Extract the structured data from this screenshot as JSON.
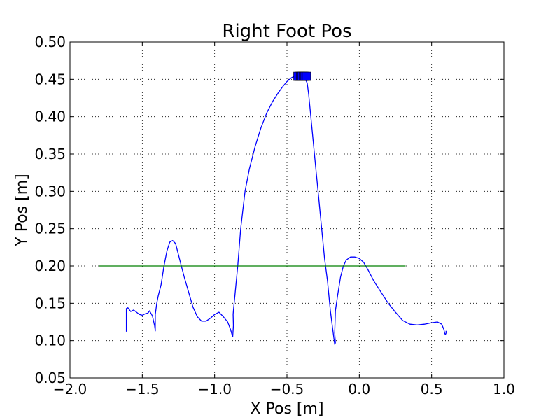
{
  "chart_data": {
    "type": "line",
    "title": "Right Foot Pos",
    "xlabel": "X Pos [m]",
    "ylabel": "Y Pos [m]",
    "xlim": [
      -2.0,
      1.0
    ],
    "ylim": [
      0.05,
      0.5
    ],
    "grid": true,
    "x_ticks": [
      {
        "value": -2.0,
        "label": "−2.0"
      },
      {
        "value": -1.5,
        "label": "−1.5"
      },
      {
        "value": -1.0,
        "label": "−1.0"
      },
      {
        "value": -0.5,
        "label": "−0.5"
      },
      {
        "value": 0.0,
        "label": "0.0"
      },
      {
        "value": 0.5,
        "label": "0.5"
      },
      {
        "value": 1.0,
        "label": "1.0"
      }
    ],
    "y_ticks": [
      {
        "value": 0.05,
        "label": "0.05"
      },
      {
        "value": 0.1,
        "label": "0.10"
      },
      {
        "value": 0.15,
        "label": "0.15"
      },
      {
        "value": 0.2,
        "label": "0.20"
      },
      {
        "value": 0.25,
        "label": "0.25"
      },
      {
        "value": 0.3,
        "label": "0.30"
      },
      {
        "value": 0.35,
        "label": "0.35"
      },
      {
        "value": 0.4,
        "label": "0.40"
      },
      {
        "value": 0.45,
        "label": "0.45"
      },
      {
        "value": 0.5,
        "label": "0.50"
      }
    ],
    "series": [
      {
        "color": "#0000ff",
        "x": [
          -1.61,
          -1.61,
          -1.6,
          -1.58,
          -1.56,
          -1.54,
          -1.52,
          -1.5,
          -1.48,
          -1.46,
          -1.45,
          -1.43,
          -1.415,
          -1.41,
          -1.41,
          -1.41,
          -1.4,
          -1.39,
          -1.37,
          -1.35,
          -1.33,
          -1.31,
          -1.29,
          -1.27,
          -1.25,
          -1.23,
          -1.21,
          -1.18,
          -1.15,
          -1.12,
          -1.09,
          -1.06,
          -1.03,
          -1.0,
          -0.97,
          -0.94,
          -0.91,
          -0.89,
          -0.88,
          -0.875,
          -0.87,
          -0.872,
          -0.87,
          -0.86,
          -0.84,
          -0.82,
          -0.79,
          -0.76,
          -0.72,
          -0.68,
          -0.64,
          -0.6,
          -0.56,
          -0.53,
          -0.5,
          -0.47,
          -0.44,
          -0.42,
          -0.4,
          -0.38,
          -0.36,
          -0.35,
          -0.34,
          -0.32,
          -0.3,
          -0.28,
          -0.26,
          -0.24,
          -0.22,
          -0.2,
          -0.18,
          -0.17,
          -0.165,
          -0.17,
          -0.165,
          -0.15,
          -0.13,
          -0.11,
          -0.09,
          -0.06,
          -0.03,
          0.0,
          0.03,
          0.06,
          0.1,
          0.15,
          0.2,
          0.25,
          0.3,
          0.35,
          0.4,
          0.45,
          0.5,
          0.54,
          0.57,
          0.585,
          0.59,
          0.595,
          0.6,
          0.6
        ],
        "y": [
          0.112,
          0.143,
          0.144,
          0.139,
          0.141,
          0.138,
          0.135,
          0.134,
          0.136,
          0.137,
          0.14,
          0.133,
          0.12,
          0.113,
          0.118,
          0.135,
          0.15,
          0.16,
          0.175,
          0.2,
          0.22,
          0.232,
          0.234,
          0.23,
          0.215,
          0.2,
          0.185,
          0.165,
          0.145,
          0.132,
          0.126,
          0.126,
          0.13,
          0.135,
          0.138,
          0.132,
          0.125,
          0.115,
          0.108,
          0.105,
          0.12,
          0.135,
          0.14,
          0.16,
          0.2,
          0.25,
          0.3,
          0.33,
          0.36,
          0.385,
          0.405,
          0.42,
          0.432,
          0.44,
          0.447,
          0.452,
          0.455,
          0.455,
          0.455,
          0.453,
          0.445,
          0.43,
          0.41,
          0.37,
          0.33,
          0.29,
          0.25,
          0.21,
          0.18,
          0.14,
          0.11,
          0.095,
          0.097,
          0.11,
          0.14,
          0.16,
          0.185,
          0.2,
          0.208,
          0.212,
          0.212,
          0.21,
          0.205,
          0.195,
          0.18,
          0.165,
          0.15,
          0.138,
          0.127,
          0.122,
          0.121,
          0.122,
          0.124,
          0.125,
          0.122,
          0.115,
          0.11,
          0.108,
          0.11,
          0.113
        ]
      },
      {
        "color": "#007f00",
        "x": [
          -1.8,
          0.32
        ],
        "y": [
          0.2,
          0.2
        ]
      }
    ],
    "markers": {
      "color": "#0000ff",
      "points": [
        [
          -0.425,
          0.454
        ],
        [
          -0.415,
          0.454
        ],
        [
          -0.405,
          0.454
        ],
        [
          -0.395,
          0.454
        ],
        [
          -0.385,
          0.454
        ],
        [
          -0.375,
          0.454
        ],
        [
          -0.365,
          0.454
        ]
      ]
    }
  }
}
